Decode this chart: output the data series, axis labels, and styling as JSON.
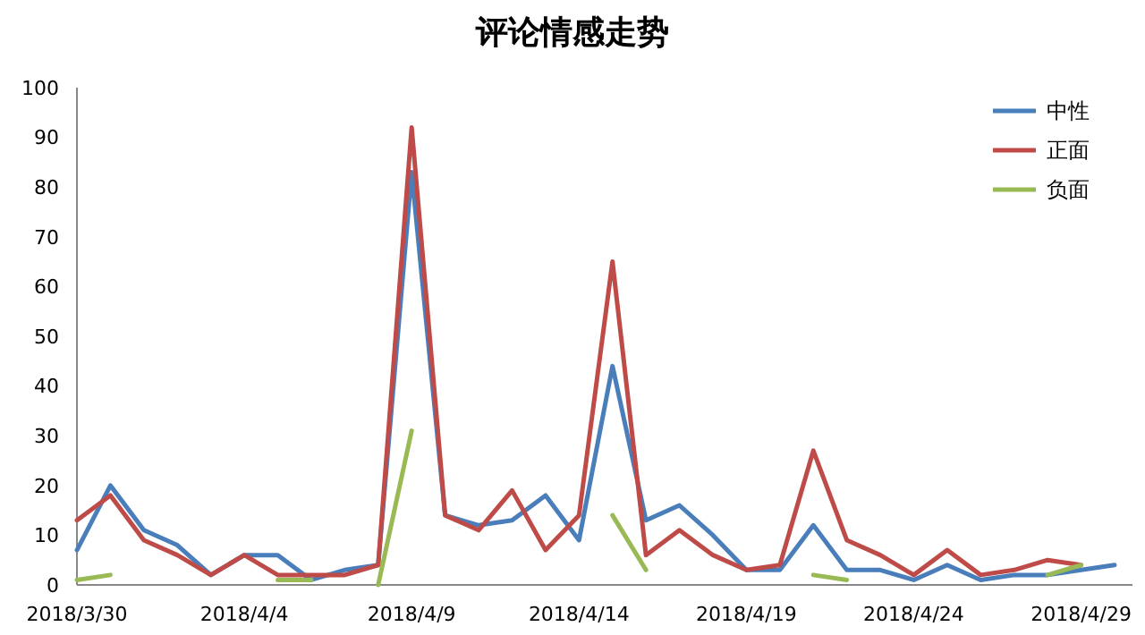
{
  "chart_data": {
    "type": "line",
    "title": "评论情感走势",
    "categories": [
      "2018/3/30",
      null,
      null,
      null,
      null,
      "2018/4/4",
      null,
      null,
      null,
      null,
      "2018/4/9",
      null,
      null,
      null,
      null,
      "2018/4/14",
      null,
      null,
      null,
      null,
      "2018/4/19",
      null,
      null,
      null,
      null,
      "2018/4/24",
      null,
      null,
      null,
      null,
      "2018/4/29",
      null
    ],
    "series": [
      {
        "name": "中性",
        "color": "#4a7ebb",
        "values": [
          7,
          20,
          11,
          8,
          2,
          6,
          6,
          1,
          3,
          4,
          83,
          14,
          12,
          13,
          18,
          9,
          44,
          13,
          16,
          10,
          3,
          3,
          12,
          3,
          3,
          1,
          4,
          1,
          2,
          2,
          3,
          4
        ]
      },
      {
        "name": "正面",
        "color": "#be4b48",
        "values": [
          13,
          18,
          9,
          6,
          2,
          6,
          2,
          2,
          2,
          4,
          92,
          14,
          11,
          19,
          7,
          14,
          65,
          6,
          11,
          6,
          3,
          4,
          27,
          9,
          6,
          2,
          7,
          2,
          3,
          5,
          4,
          null
        ]
      },
      {
        "name": "负面",
        "color": "#98b954",
        "values": [
          1,
          2,
          null,
          null,
          null,
          null,
          1,
          1,
          null,
          0,
          31,
          null,
          null,
          null,
          null,
          null,
          14,
          3,
          null,
          null,
          null,
          null,
          2,
          1,
          null,
          null,
          null,
          null,
          null,
          2,
          4,
          null
        ]
      }
    ],
    "ylim": [
      0,
      100
    ],
    "yticks": [
      0,
      10,
      20,
      30,
      40,
      50,
      60,
      70,
      80,
      90,
      100
    ],
    "grid": false,
    "legend": "top right",
    "marker": "none",
    "line_style": "solid"
  }
}
